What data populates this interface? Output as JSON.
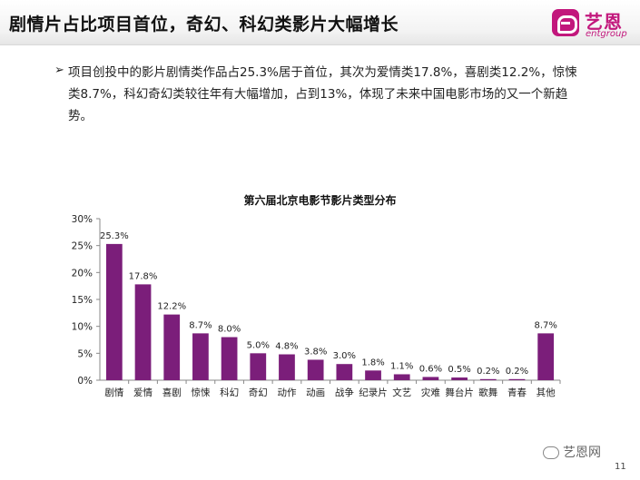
{
  "header": {
    "title": "剧情片占比项目首位，奇幻、科幻类影片大幅增长",
    "logo_cn": "艺恩",
    "logo_en": "entgroup"
  },
  "bullet": {
    "marker": "➢",
    "text": "项目创投中的影片剧情类作品占25.3%居于首位，其次为爱情类17.8%，喜剧类12.2%，惊悚类8.7%，科幻奇幻类较往年有大幅增加，占到13%，体现了未来中国电影市场的又一个新趋势。"
  },
  "chart_data": {
    "type": "bar",
    "title": "第六届北京电影节影片类型分布",
    "categories": [
      "剧情",
      "爱情",
      "喜剧",
      "惊悚",
      "科幻",
      "奇幻",
      "动作",
      "动画",
      "战争",
      "纪录片",
      "文艺",
      "灾难",
      "舞台片",
      "歌舞",
      "青春",
      "其他"
    ],
    "values": [
      25.3,
      17.8,
      12.2,
      8.7,
      8.0,
      5.0,
      4.8,
      3.8,
      3.0,
      1.8,
      1.1,
      0.6,
      0.5,
      0.2,
      0.2,
      8.7
    ],
    "value_labels": [
      "25.3%",
      "17.8%",
      "12.2%",
      "8.7%",
      "8.0%",
      "5.0%",
      "4.8%",
      "3.8%",
      "3.0%",
      "1.8%",
      "1.1%",
      "0.6%",
      "0.5%",
      "0.2%",
      "0.2%",
      "8.7%"
    ],
    "yticks": [
      "0%",
      "5%",
      "10%",
      "15%",
      "20%",
      "25%",
      "30%"
    ],
    "ylim": [
      0,
      30
    ],
    "xlabel": "",
    "ylabel": "",
    "bar_color": "#7b1e7a",
    "grid": false
  },
  "footer": {
    "watermark": "艺恩网",
    "page_number": "11"
  }
}
